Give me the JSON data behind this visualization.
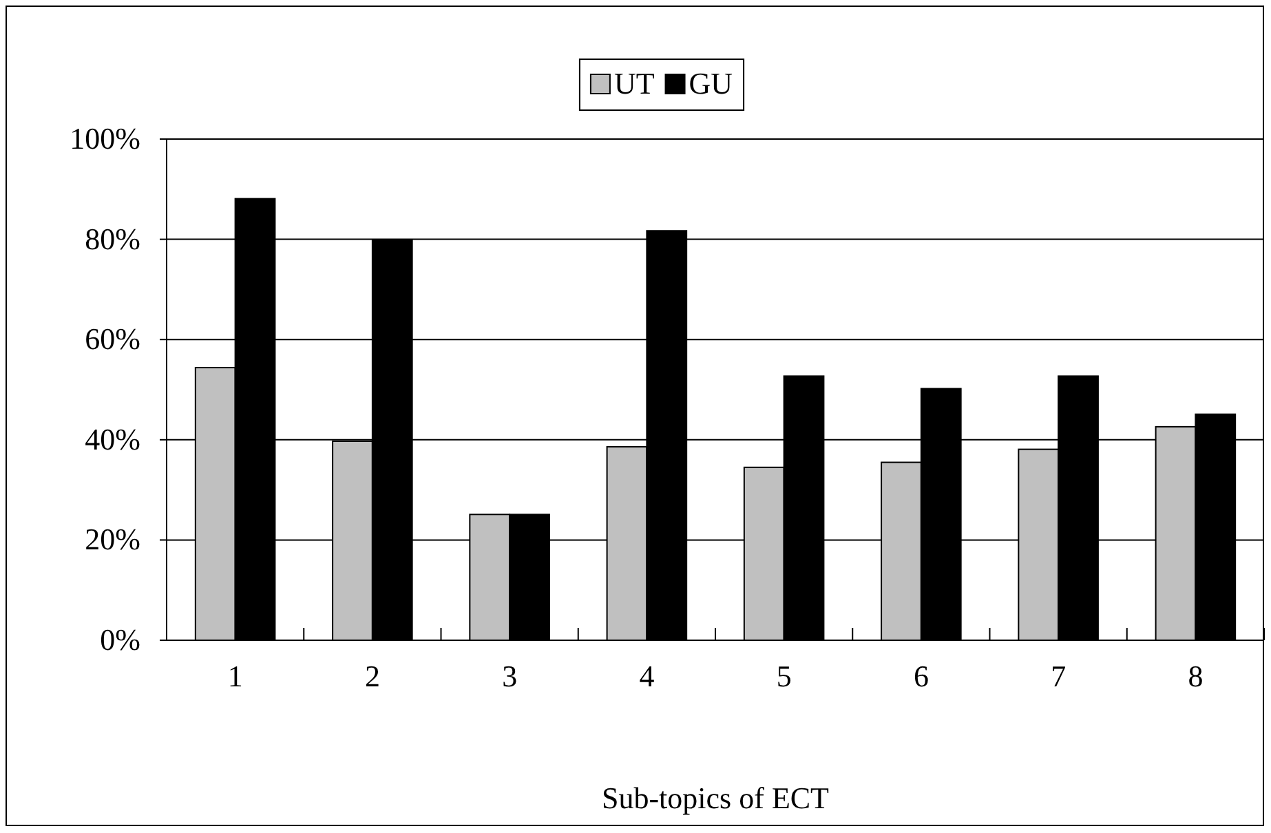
{
  "chart_data": {
    "type": "bar",
    "xlabel": "Sub-topics of ECT",
    "categories": [
      "1",
      "2",
      "3",
      "4",
      "5",
      "6",
      "7",
      "8"
    ],
    "series": [
      {
        "name": "UT",
        "color": "#c0c0c0",
        "values": [
          54.4,
          39.7,
          25.1,
          38.6,
          34.5,
          35.5,
          38.1,
          42.6
        ]
      },
      {
        "name": "GU",
        "color": "#000000",
        "values": [
          88.1,
          79.8,
          25.1,
          81.7,
          52.7,
          50.2,
          52.7,
          45.1
        ]
      }
    ],
    "ylim": [
      0,
      100
    ],
    "yticks": [
      {
        "value": 0,
        "label": "0%"
      },
      {
        "value": 20,
        "label": "20%"
      },
      {
        "value": 40,
        "label": "40%"
      },
      {
        "value": 60,
        "label": "60%"
      },
      {
        "value": 80,
        "label": "80%"
      },
      {
        "value": 100,
        "label": "100%"
      }
    ],
    "grid": "y",
    "legend": "top"
  }
}
